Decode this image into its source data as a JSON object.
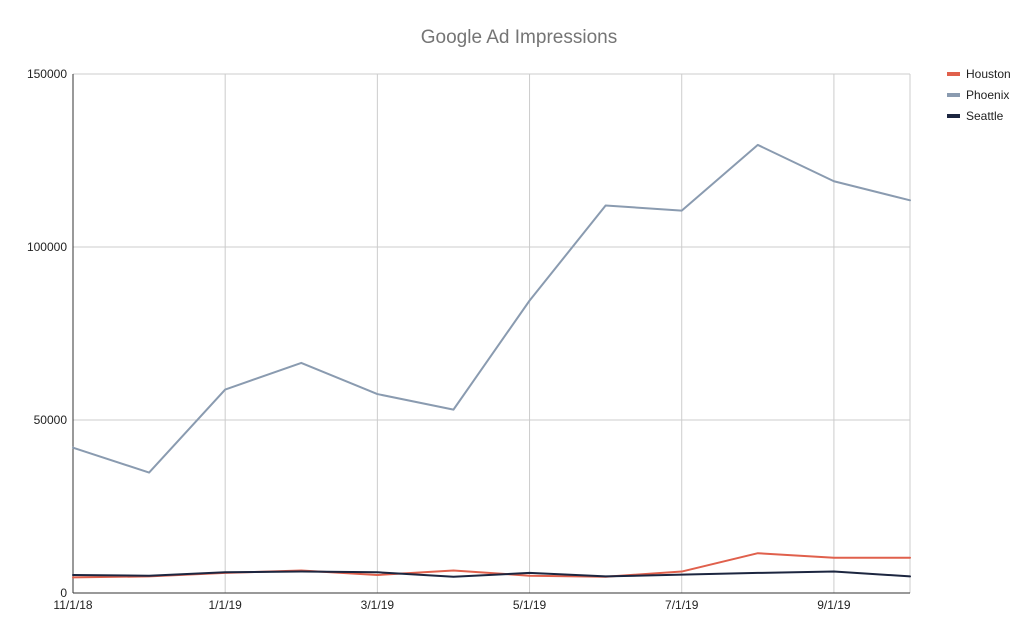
{
  "chart_data": {
    "type": "line",
    "title": "Google Ad Impressions",
    "xlabel": "",
    "ylabel": "",
    "x": [
      "11/1/18",
      "12/1/18",
      "1/1/19",
      "2/1/19",
      "3/1/19",
      "4/1/19",
      "5/1/19",
      "6/1/19",
      "7/1/19",
      "8/1/19",
      "9/1/19",
      "10/1/19"
    ],
    "x_tick_labels": [
      "11/1/18",
      "1/1/19",
      "3/1/19",
      "5/1/19",
      "7/1/19",
      "9/1/19"
    ],
    "y_ticks": [
      0,
      50000,
      100000,
      150000
    ],
    "ylim": [
      0,
      150000
    ],
    "grid": true,
    "legend_position": "top-right",
    "series": [
      {
        "name": "Houston",
        "color": "#e0604c",
        "values": [
          4500,
          4800,
          5800,
          6500,
          5200,
          6500,
          5000,
          4700,
          6200,
          11500,
          10200,
          10200
        ]
      },
      {
        "name": "Phoenix",
        "color": "#8a9bb0",
        "values": [
          42000,
          34800,
          58800,
          66500,
          57500,
          53000,
          84500,
          112000,
          110500,
          129500,
          119000,
          113500
        ]
      },
      {
        "name": "Seattle",
        "color": "#1c2640",
        "values": [
          5200,
          5000,
          6000,
          6200,
          6000,
          4700,
          5800,
          4800,
          5300,
          5800,
          6200,
          4800
        ]
      }
    ]
  }
}
